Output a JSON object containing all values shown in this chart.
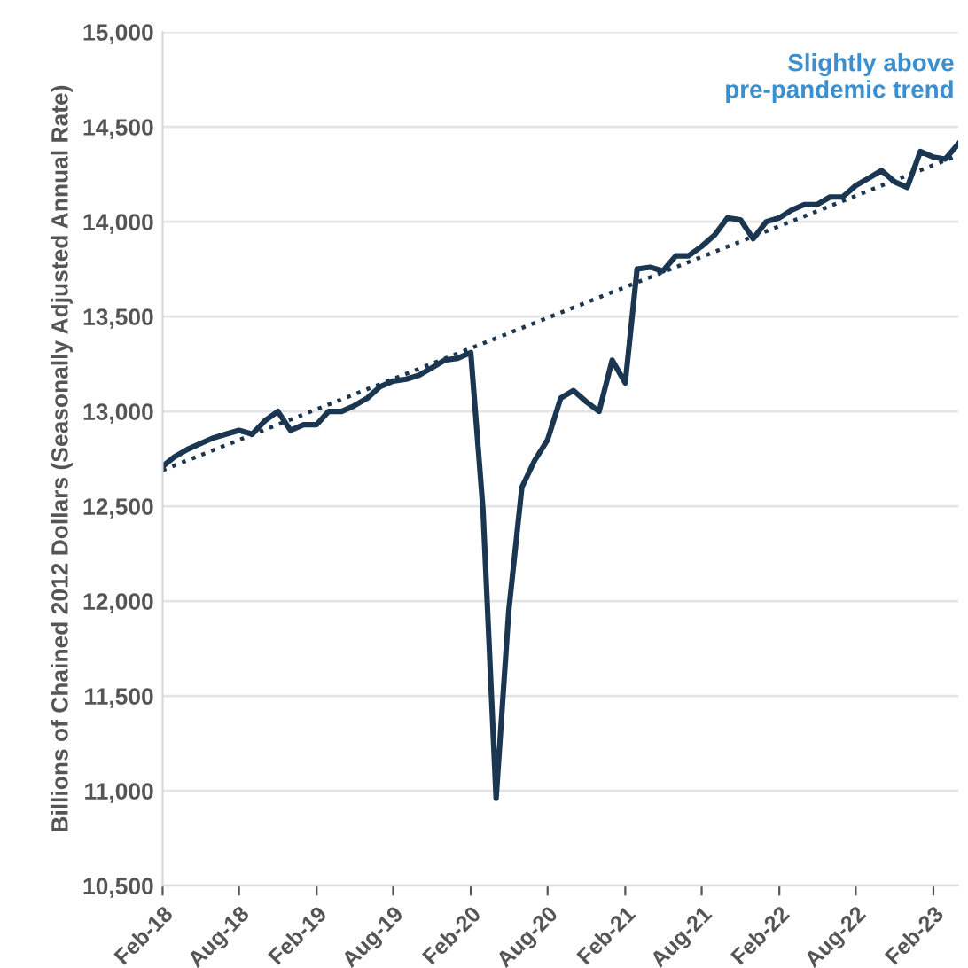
{
  "chart_data": {
    "type": "line",
    "ylabel": "Billions of Chained 2012 Dollars (Seasonally Adjusted Annual Rate)",
    "annotations": [
      "Slightly above\npre-pandemic trend"
    ],
    "x": [
      "2018-02",
      "2018-03",
      "2018-04",
      "2018-05",
      "2018-06",
      "2018-07",
      "2018-08",
      "2018-09",
      "2018-10",
      "2018-11",
      "2018-12",
      "2019-01",
      "2019-02",
      "2019-03",
      "2019-04",
      "2019-05",
      "2019-06",
      "2019-07",
      "2019-08",
      "2019-09",
      "2019-10",
      "2019-11",
      "2019-12",
      "2020-01",
      "2020-02",
      "2020-03",
      "2020-04",
      "2020-05",
      "2020-06",
      "2020-07",
      "2020-08",
      "2020-09",
      "2020-10",
      "2020-11",
      "2020-12",
      "2021-01",
      "2021-02",
      "2021-03",
      "2021-04",
      "2021-05",
      "2021-06",
      "2021-07",
      "2021-08",
      "2021-09",
      "2021-10",
      "2021-11",
      "2021-12",
      "2022-01",
      "2022-02",
      "2022-03",
      "2022-04",
      "2022-05",
      "2022-06",
      "2022-07",
      "2022-08",
      "2022-09",
      "2022-10",
      "2022-11",
      "2022-12",
      "2023-01",
      "2023-02",
      "2023-03",
      "2023-04"
    ],
    "series": [
      {
        "color": "#1b3650",
        "line_style": "solid",
        "values": [
          12710,
          12760,
          12800,
          12830,
          12860,
          12880,
          12900,
          12880,
          12950,
          13000,
          12900,
          12930,
          12930,
          13000,
          13000,
          13030,
          13070,
          13130,
          13160,
          13170,
          13190,
          13230,
          13270,
          13280,
          13310,
          12480,
          10960,
          11950,
          12600,
          12740,
          12850,
          13070,
          13110,
          13050,
          13000,
          13270,
          13150,
          13750,
          13760,
          13740,
          13820,
          13820,
          13870,
          13930,
          14020,
          14010,
          13910,
          14000,
          14020,
          14060,
          14090,
          14090,
          14130,
          14130,
          14190,
          14230,
          14270,
          14210,
          14180,
          14370,
          14340,
          14330,
          14410
        ]
      },
      {
        "color": "#1b3650",
        "line_style": "dotted",
        "x": [
          "2018-02",
          "2023-04"
        ],
        "values": [
          12690,
          14350
        ]
      }
    ],
    "xlim": [
      "2018-02",
      "2023-04"
    ],
    "xticks": [
      {
        "value": "2018-02",
        "label": "Feb-18"
      },
      {
        "value": "2018-08",
        "label": "Aug-18"
      },
      {
        "value": "2019-02",
        "label": "Feb-19"
      },
      {
        "value": "2019-08",
        "label": "Aug-19"
      },
      {
        "value": "2020-02",
        "label": "Feb-20"
      },
      {
        "value": "2020-08",
        "label": "Aug-20"
      },
      {
        "value": "2021-02",
        "label": "Feb-21"
      },
      {
        "value": "2021-08",
        "label": "Aug-21"
      },
      {
        "value": "2022-02",
        "label": "Feb-22"
      },
      {
        "value": "2022-08",
        "label": "Aug-22"
      },
      {
        "value": "2023-02",
        "label": "Feb-23"
      }
    ],
    "ylim": [
      10500,
      15000
    ],
    "yticks": [
      {
        "value": 10500,
        "label": "10,500"
      },
      {
        "value": 11000,
        "label": "11,000"
      },
      {
        "value": 11500,
        "label": "11,500"
      },
      {
        "value": 12000,
        "label": "12,000"
      },
      {
        "value": 12500,
        "label": "12,500"
      },
      {
        "value": 13000,
        "label": "13,000"
      },
      {
        "value": 13500,
        "label": "13,500"
      },
      {
        "value": 14000,
        "label": "14,000"
      },
      {
        "value": 14500,
        "label": "14,500"
      },
      {
        "value": 15000,
        "label": "15,000"
      }
    ],
    "grid": "y",
    "marker": "none"
  }
}
